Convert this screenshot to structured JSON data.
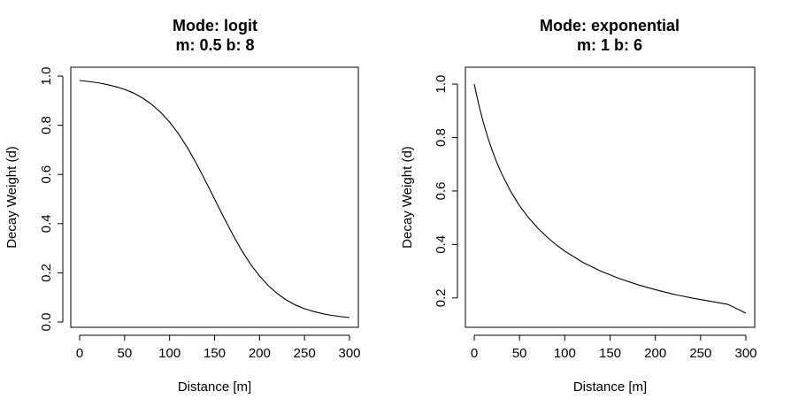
{
  "chart_data": [
    {
      "type": "line",
      "title_line1": "Mode: logit",
      "title_line2": "m: 0.5    b: 8",
      "xlabel": "Distance [m]",
      "ylabel": "Decay Weight (d)",
      "xlim": [
        0,
        300
      ],
      "ylim": [
        0.0,
        1.0
      ],
      "xticks": [
        0,
        50,
        100,
        150,
        200,
        250,
        300
      ],
      "yticks": [
        0.0,
        0.2,
        0.4,
        0.6,
        0.8,
        1.0
      ],
      "ytick_labels": [
        "0.0",
        "0.2",
        "0.4",
        "0.6",
        "0.8",
        "1.0"
      ],
      "grid": false,
      "series": [
        {
          "x": [
            0,
            10,
            20,
            30,
            40,
            50,
            60,
            70,
            80,
            90,
            100,
            110,
            120,
            130,
            140,
            150,
            160,
            170,
            180,
            190,
            200,
            210,
            220,
            230,
            240,
            250,
            260,
            270,
            280,
            290,
            300
          ],
          "y": [
            0.982,
            0.978,
            0.973,
            0.966,
            0.957,
            0.946,
            0.931,
            0.911,
            0.885,
            0.853,
            0.813,
            0.765,
            0.708,
            0.643,
            0.573,
            0.5,
            0.427,
            0.357,
            0.292,
            0.235,
            0.187,
            0.147,
            0.115,
            0.089,
            0.069,
            0.054,
            0.043,
            0.034,
            0.027,
            0.022,
            0.018
          ]
        }
      ]
    },
    {
      "type": "line",
      "title_line1": "Mode: exponential",
      "title_line2": "m: 1    b: 6",
      "xlabel": "Distance [m]",
      "ylabel": "Decay Weight (d)",
      "xlim": [
        0,
        300
      ],
      "ylim": [
        0.11,
        1.03
      ],
      "xticks": [
        0,
        50,
        100,
        150,
        200,
        250,
        300
      ],
      "yticks": [
        0.2,
        0.4,
        0.6,
        0.8,
        1.0
      ],
      "ytick_labels": [
        "0.2",
        "0.4",
        "0.6",
        "0.8",
        "1.0"
      ],
      "grid": false,
      "series": [
        {
          "x": [
            0,
            5,
            10,
            15,
            20,
            25,
            30,
            40,
            50,
            60,
            70,
            80,
            90,
            100,
            120,
            140,
            160,
            180,
            200,
            220,
            240,
            260,
            280,
            300
          ],
          "y": [
            1.0,
            0.923,
            0.857,
            0.8,
            0.75,
            0.706,
            0.667,
            0.6,
            0.545,
            0.5,
            0.462,
            0.429,
            0.4,
            0.375,
            0.333,
            0.3,
            0.273,
            0.25,
            0.231,
            0.214,
            0.2,
            0.188,
            0.176,
            0.143
          ]
        }
      ]
    }
  ]
}
